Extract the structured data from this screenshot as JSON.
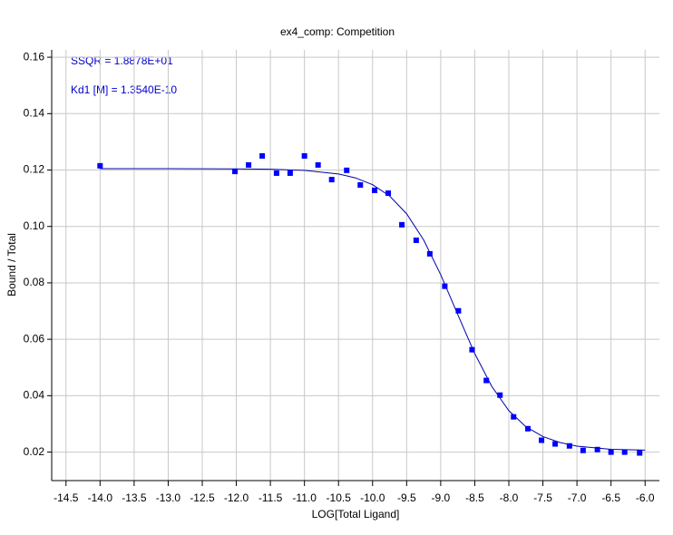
{
  "chart_data": {
    "type": "scatter",
    "title": "ex4_comp: Competition",
    "xlabel": "LOG[Total Ligand]",
    "ylabel": "Bound / Total",
    "annotations": [
      "SSQR =  1.8878E+01",
      "Kd1 [M] =  1.3540E-10"
    ],
    "color": "#0000ff",
    "line_color": "#0000aa",
    "grid": true,
    "xlim": [
      -14.71,
      -5.79
    ],
    "ylim": [
      0.0099,
      0.1626
    ],
    "xticks": [
      -14.5,
      {
        "value": -14,
        "label": "-14.0"
      },
      -13.5,
      {
        "value": -13,
        "label": "-13.0"
      },
      -12.5,
      {
        "value": -12,
        "label": "-12.0"
      },
      -11.5,
      {
        "value": -11,
        "label": "-11.0"
      },
      -10.5,
      {
        "value": -10,
        "label": "-10.0"
      },
      -9.5,
      {
        "value": -9,
        "label": "-9.0"
      },
      -8.5,
      {
        "value": -8,
        "label": "-8.0"
      },
      -7.5,
      {
        "value": -7,
        "label": "-7.0"
      },
      -6.5,
      {
        "value": -6,
        "label": "-6.0"
      }
    ],
    "yticks": [
      0.02,
      0.04,
      0.06,
      0.08,
      {
        "value": 0.1,
        "label": "0.10"
      },
      0.12,
      0.14,
      0.16
    ],
    "x": [
      -14.0,
      -12.02,
      -11.82,
      -11.62,
      -11.41,
      -11.21,
      -11.0,
      -10.8,
      -10.6,
      -10.38,
      -10.18,
      -9.97,
      -9.77,
      -9.57,
      -9.36,
      -9.16,
      -8.94,
      -8.74,
      -8.54,
      -8.33,
      -8.13,
      -7.93,
      -7.72,
      -7.52,
      -7.32,
      -7.11,
      -6.91,
      -6.7,
      -6.5,
      -6.3,
      -6.08
    ],
    "values": [
      0.1215,
      0.1195,
      0.1218,
      0.125,
      0.1189,
      0.1189,
      0.125,
      0.1218,
      0.1166,
      0.1199,
      0.1147,
      0.1128,
      0.1118,
      0.1006,
      0.0951,
      0.0903,
      0.0788,
      0.0701,
      0.0563,
      0.0454,
      0.0402,
      0.0325,
      0.0283,
      0.0242,
      0.0229,
      0.0222,
      0.0206,
      0.0209,
      0.02,
      0.02,
      0.0197
    ],
    "fit": {
      "x": [
        -14.0,
        -13.0,
        -12.0,
        -11.5,
        -11.0,
        -10.5,
        -10.25,
        -10.0,
        -9.75,
        -9.5,
        -9.25,
        -9.0,
        -8.75,
        -8.5,
        -8.25,
        -8.0,
        -7.75,
        -7.5,
        -7.25,
        -7.0,
        -6.5,
        -6.0
      ],
      "values": [
        0.1205,
        0.1205,
        0.1204,
        0.1203,
        0.1199,
        0.1186,
        0.1172,
        0.1148,
        0.1108,
        0.1045,
        0.0952,
        0.0829,
        0.0688,
        0.0549,
        0.0433,
        0.0347,
        0.029,
        0.0255,
        0.0234,
        0.0221,
        0.021,
        0.0207
      ]
    }
  }
}
